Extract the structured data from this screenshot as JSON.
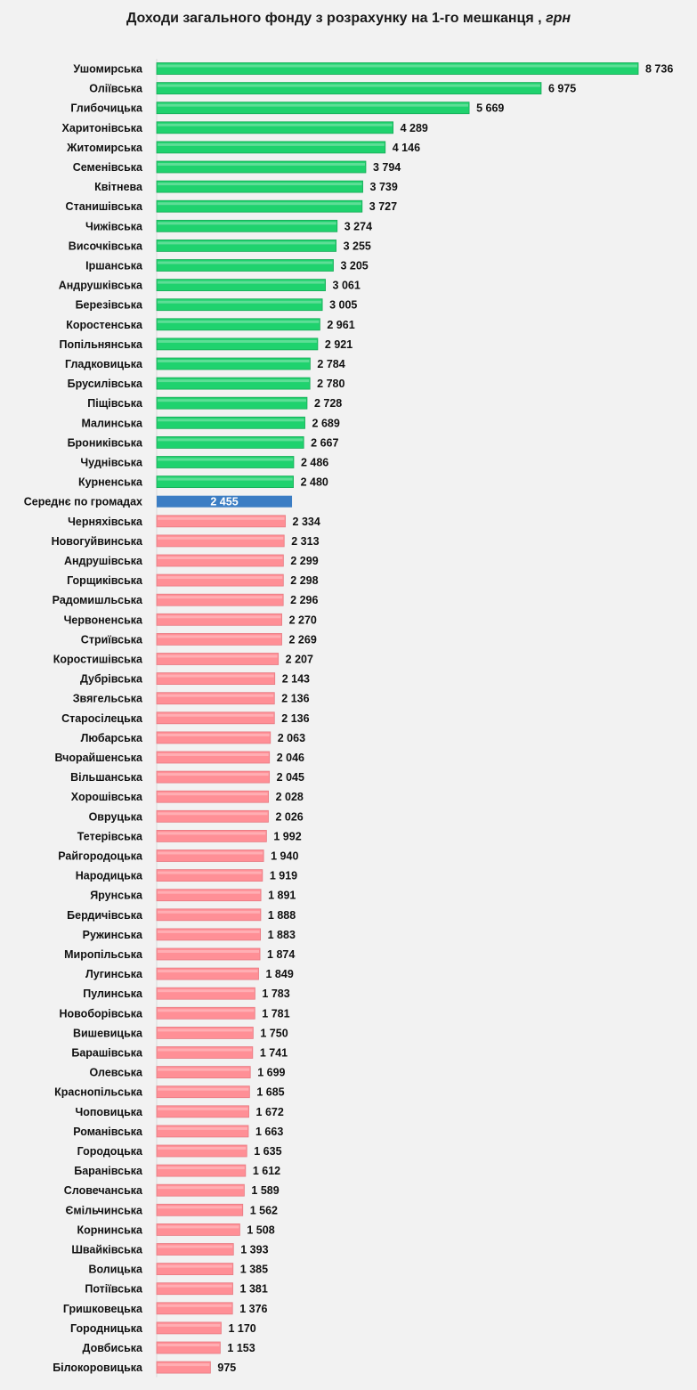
{
  "chart_data": {
    "type": "bar",
    "orientation": "horizontal",
    "title": "Доходи загального фонду з розрахунку на 1-го мешканця ,",
    "title_unit": "грн",
    "xlabel": "",
    "ylabel": "",
    "xlim": [
      0,
      8736
    ],
    "colors": {
      "above": "#1fd26e",
      "above_edge": "#17a957",
      "average": "#3b7dc4",
      "below": "#ff8f96",
      "below_edge": "#e77a82"
    },
    "average_label": "Середнє по громадах",
    "categories": [
      "Ушомирська",
      "Оліївська",
      "Глибочицька",
      "Харитонівська",
      "Житомирська",
      "Семенівська",
      "Квітнева",
      "Станишівська",
      "Чижівська",
      "Височківська",
      "Іршанська",
      "Андрушківська",
      "Березівська",
      "Коростенська",
      "Попільнянська",
      "Гладковицька",
      "Брусилівська",
      "Піщівська",
      "Малинська",
      "Брониківська",
      "Чуднівська",
      "Курненська",
      "Середнє по громадах",
      "Черняхівська",
      "Новогуйвинська",
      "Андрушівська",
      "Горщиківська",
      "Радомишльська",
      "Червоненська",
      "Стриївська",
      "Коростишівська",
      "Дубрівська",
      "Звягельська",
      "Старосілецька",
      "Любарська",
      "Вчорайшенська",
      "Вільшанська",
      "Хорошівська",
      "Овруцька",
      "Тетерівська",
      "Райгородоцька",
      "Народицька",
      "Ярунська",
      "Бердичівська",
      "Ружинська",
      "Миропільська",
      "Лугинська",
      "Пулинська",
      "Новоборівська",
      "Вишевицька",
      "Барашівська",
      "Олевська",
      "Краснопільська",
      "Чоповицька",
      "Романівська",
      "Городоцька",
      "Баранівська",
      "Словечанська",
      "Ємільчинська",
      "Корнинська",
      "Швайківська",
      "Волицька",
      "Потіївська",
      "Гришковецька",
      "Городницька",
      "Довбиська",
      "Білокоровицька"
    ],
    "values": [
      8736,
      6975,
      5669,
      4289,
      4146,
      3794,
      3739,
      3727,
      3274,
      3255,
      3205,
      3061,
      3005,
      2961,
      2921,
      2784,
      2780,
      2728,
      2689,
      2667,
      2486,
      2480,
      2455,
      2334,
      2313,
      2299,
      2298,
      2296,
      2270,
      2269,
      2207,
      2143,
      2136,
      2136,
      2063,
      2046,
      2045,
      2028,
      2026,
      1992,
      1940,
      1919,
      1891,
      1888,
      1883,
      1874,
      1849,
      1783,
      1781,
      1750,
      1741,
      1699,
      1685,
      1672,
      1663,
      1635,
      1612,
      1589,
      1562,
      1508,
      1393,
      1385,
      1381,
      1376,
      1170,
      1153,
      975
    ],
    "value_labels": [
      "8 736",
      "6 975",
      "5 669",
      "4 289",
      "4 146",
      "3 794",
      "3 739",
      "3 727",
      "3 274",
      "3 255",
      "3 205",
      "3 061",
      "3 005",
      "2 961",
      "2 921",
      "2 784",
      "2 780",
      "2 728",
      "2 689",
      "2 667",
      "2 486",
      "2 480",
      "2 455",
      "2 334",
      "2 313",
      "2 299",
      "2 298",
      "2 296",
      "2 270",
      "2 269",
      "2 207",
      "2 143",
      "2 136",
      "2 136",
      "2 063",
      "2 046",
      "2 045",
      "2 028",
      "2 026",
      "1 992",
      "1 940",
      "1 919",
      "1 891",
      "1 888",
      "1 883",
      "1 874",
      "1 849",
      "1 783",
      "1 781",
      "1 750",
      "1 741",
      "1 699",
      "1 685",
      "1 672",
      "1 663",
      "1 635",
      "1 612",
      "1 589",
      "1 562",
      "1 508",
      "1 393",
      "1 385",
      "1 381",
      "1 376",
      "1 170",
      "1 153",
      "975"
    ]
  }
}
